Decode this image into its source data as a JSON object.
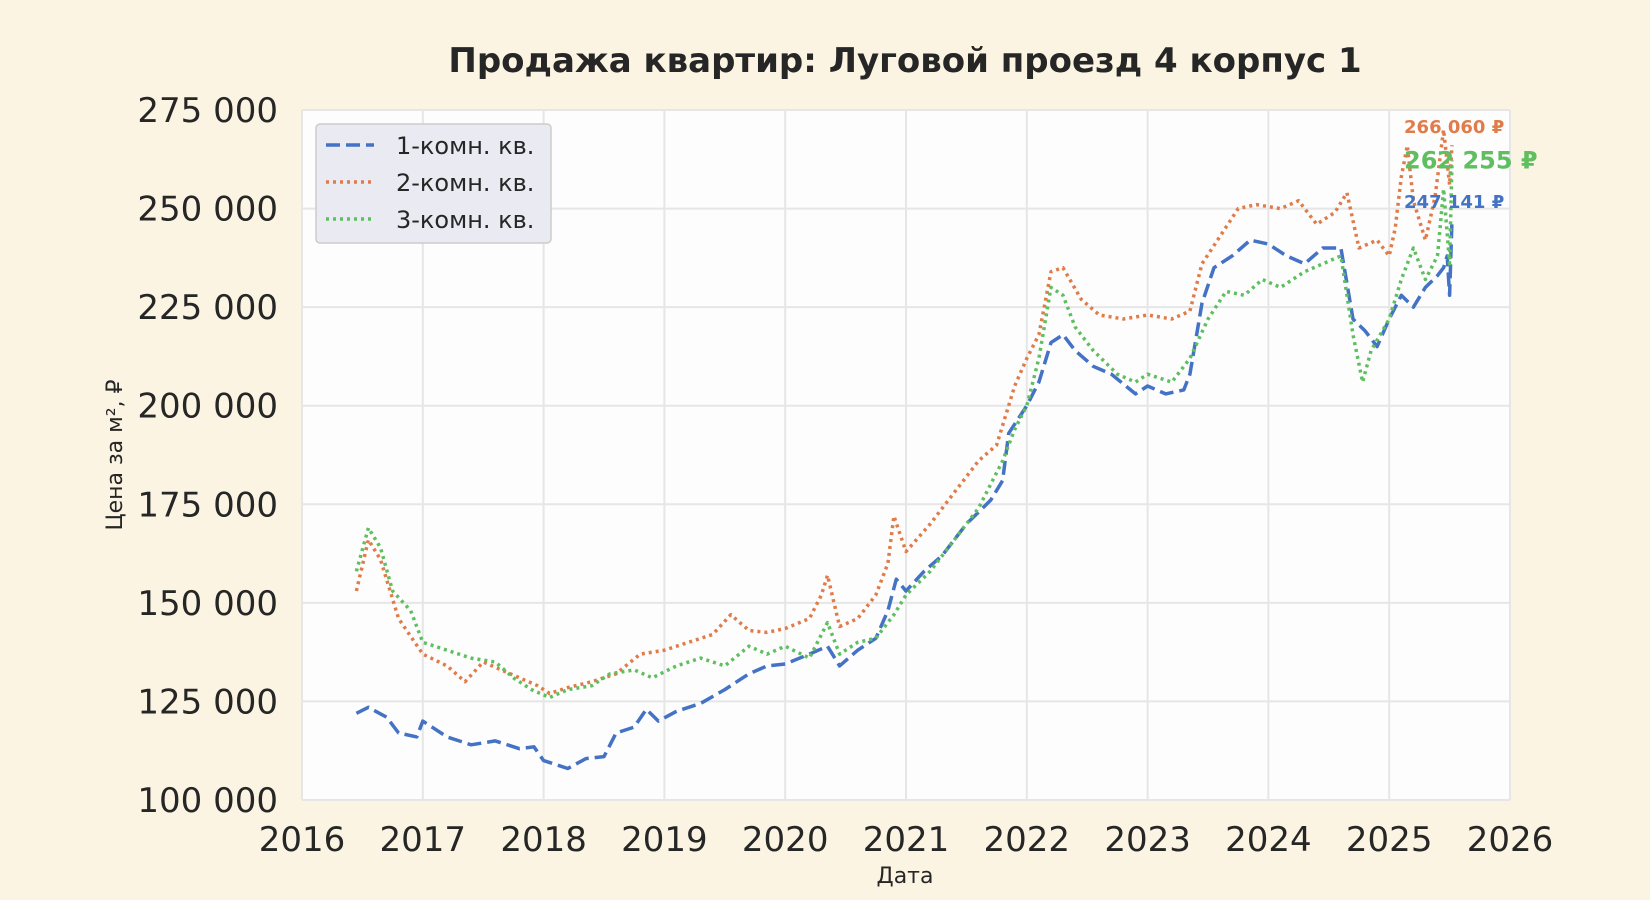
{
  "chart_data": {
    "type": "line",
    "title": "Продажа квартир: Луговой проезд 4 корпус 1",
    "xlabel": "Дата",
    "ylabel": "Цена за м², ₽",
    "xlim": [
      2016.0,
      2026.0
    ],
    "ylim": [
      100000,
      275000
    ],
    "x_ticks": [
      2016,
      2017,
      2018,
      2019,
      2020,
      2021,
      2022,
      2023,
      2024,
      2025,
      2026
    ],
    "x_tick_labels": [
      "2016",
      "2017",
      "2018",
      "2019",
      "2020",
      "2021",
      "2022",
      "2023",
      "2024",
      "2025",
      "2026"
    ],
    "y_ticks": [
      100000,
      125000,
      150000,
      175000,
      200000,
      225000,
      250000,
      275000
    ],
    "y_tick_labels": [
      "100 000",
      "125 000",
      "150 000",
      "175 000",
      "200 000",
      "225 000",
      "250 000",
      "275 000"
    ],
    "grid": true,
    "legend_position": "top-left",
    "series": [
      {
        "name": "1-комн. кв.",
        "color": "#4472c4",
        "dash": "dashed",
        "end_label": "247 141 ₽",
        "points": [
          [
            2016.45,
            122000
          ],
          [
            2016.55,
            123500
          ],
          [
            2016.7,
            121000
          ],
          [
            2016.8,
            117000
          ],
          [
            2016.95,
            116000
          ],
          [
            2017.0,
            120000
          ],
          [
            2017.2,
            116000
          ],
          [
            2017.4,
            114000
          ],
          [
            2017.6,
            115000
          ],
          [
            2017.8,
            113000
          ],
          [
            2017.92,
            113500
          ],
          [
            2018.0,
            110000
          ],
          [
            2018.1,
            109000
          ],
          [
            2018.2,
            108000
          ],
          [
            2018.35,
            110500
          ],
          [
            2018.5,
            111000
          ],
          [
            2018.6,
            117000
          ],
          [
            2018.75,
            118500
          ],
          [
            2018.85,
            123000
          ],
          [
            2018.95,
            120000
          ],
          [
            2019.1,
            122500
          ],
          [
            2019.3,
            124500
          ],
          [
            2019.5,
            128000
          ],
          [
            2019.7,
            132000
          ],
          [
            2019.85,
            134000
          ],
          [
            2020.0,
            134500
          ],
          [
            2020.2,
            137000
          ],
          [
            2020.35,
            139000
          ],
          [
            2020.45,
            134000
          ],
          [
            2020.6,
            138000
          ],
          [
            2020.75,
            141000
          ],
          [
            2020.85,
            148000
          ],
          [
            2020.92,
            156000
          ],
          [
            2021.0,
            153000
          ],
          [
            2021.15,
            158000
          ],
          [
            2021.3,
            162000
          ],
          [
            2021.5,
            170000
          ],
          [
            2021.7,
            176000
          ],
          [
            2021.8,
            181000
          ],
          [
            2021.85,
            193000
          ],
          [
            2022.0,
            200000
          ],
          [
            2022.1,
            206000
          ],
          [
            2022.2,
            216000
          ],
          [
            2022.3,
            218000
          ],
          [
            2022.4,
            214000
          ],
          [
            2022.55,
            210000
          ],
          [
            2022.7,
            208000
          ],
          [
            2022.9,
            203000
          ],
          [
            2023.0,
            205000
          ],
          [
            2023.15,
            203000
          ],
          [
            2023.3,
            204000
          ],
          [
            2023.35,
            208000
          ],
          [
            2023.45,
            226000
          ],
          [
            2023.55,
            235000
          ],
          [
            2023.7,
            238000
          ],
          [
            2023.85,
            242000
          ],
          [
            2024.0,
            241000
          ],
          [
            2024.15,
            238000
          ],
          [
            2024.3,
            236000
          ],
          [
            2024.45,
            240000
          ],
          [
            2024.6,
            240000
          ],
          [
            2024.7,
            222000
          ],
          [
            2024.8,
            219000
          ],
          [
            2024.9,
            215000
          ],
          [
            2025.0,
            222000
          ],
          [
            2025.1,
            228000
          ],
          [
            2025.2,
            225000
          ],
          [
            2025.3,
            230000
          ],
          [
            2025.4,
            233000
          ],
          [
            2025.45,
            235000
          ],
          [
            2025.48,
            238000
          ],
          [
            2025.5,
            228000
          ],
          [
            2025.52,
            247141
          ]
        ]
      },
      {
        "name": "2-комн. кв.",
        "color": "#e07b4a",
        "dash": "dotted",
        "end_label": "266 060 ₽",
        "points": [
          [
            2016.45,
            153000
          ],
          [
            2016.55,
            166000
          ],
          [
            2016.65,
            161000
          ],
          [
            2016.8,
            146000
          ],
          [
            2017.0,
            137000
          ],
          [
            2017.2,
            134000
          ],
          [
            2017.35,
            130000
          ],
          [
            2017.5,
            135000
          ],
          [
            2017.65,
            133000
          ],
          [
            2017.8,
            131000
          ],
          [
            2017.95,
            129000
          ],
          [
            2018.05,
            127000
          ],
          [
            2018.2,
            128500
          ],
          [
            2018.4,
            130000
          ],
          [
            2018.6,
            132000
          ],
          [
            2018.8,
            137000
          ],
          [
            2019.0,
            138000
          ],
          [
            2019.2,
            140000
          ],
          [
            2019.4,
            142000
          ],
          [
            2019.55,
            147000
          ],
          [
            2019.7,
            143000
          ],
          [
            2019.85,
            142500
          ],
          [
            2020.0,
            143500
          ],
          [
            2020.2,
            146000
          ],
          [
            2020.3,
            152000
          ],
          [
            2020.35,
            157000
          ],
          [
            2020.45,
            144000
          ],
          [
            2020.6,
            146000
          ],
          [
            2020.75,
            152000
          ],
          [
            2020.85,
            160000
          ],
          [
            2020.9,
            172000
          ],
          [
            2021.0,
            163000
          ],
          [
            2021.2,
            170000
          ],
          [
            2021.4,
            178000
          ],
          [
            2021.6,
            186000
          ],
          [
            2021.75,
            190000
          ],
          [
            2021.9,
            205000
          ],
          [
            2022.0,
            212000
          ],
          [
            2022.1,
            218000
          ],
          [
            2022.2,
            234000
          ],
          [
            2022.3,
            235000
          ],
          [
            2022.45,
            227000
          ],
          [
            2022.6,
            223000
          ],
          [
            2022.8,
            222000
          ],
          [
            2023.0,
            223000
          ],
          [
            2023.2,
            222000
          ],
          [
            2023.35,
            224000
          ],
          [
            2023.45,
            236000
          ],
          [
            2023.6,
            243000
          ],
          [
            2023.75,
            250000
          ],
          [
            2023.9,
            251000
          ],
          [
            2024.1,
            250000
          ],
          [
            2024.25,
            252000
          ],
          [
            2024.4,
            246000
          ],
          [
            2024.55,
            249000
          ],
          [
            2024.65,
            254000
          ],
          [
            2024.75,
            240000
          ],
          [
            2024.9,
            242000
          ],
          [
            2025.0,
            238000
          ],
          [
            2025.05,
            245000
          ],
          [
            2025.1,
            258000
          ],
          [
            2025.15,
            266000
          ],
          [
            2025.2,
            252000
          ],
          [
            2025.3,
            242000
          ],
          [
            2025.38,
            253000
          ],
          [
            2025.45,
            270000
          ],
          [
            2025.5,
            256000
          ],
          [
            2025.52,
            266060
          ]
        ]
      },
      {
        "name": "3-комн. кв.",
        "color": "#5fbf5f",
        "dash": "dotted",
        "end_label": "262 255 ₽",
        "points": [
          [
            2016.45,
            158000
          ],
          [
            2016.55,
            169000
          ],
          [
            2016.65,
            164000
          ],
          [
            2016.75,
            153000
          ],
          [
            2016.9,
            148000
          ],
          [
            2017.0,
            140000
          ],
          [
            2017.2,
            138000
          ],
          [
            2017.4,
            136000
          ],
          [
            2017.6,
            135000
          ],
          [
            2017.75,
            131000
          ],
          [
            2017.9,
            128000
          ],
          [
            2018.05,
            126000
          ],
          [
            2018.2,
            128000
          ],
          [
            2018.4,
            129000
          ],
          [
            2018.55,
            132000
          ],
          [
            2018.75,
            133000
          ],
          [
            2018.9,
            131000
          ],
          [
            2019.1,
            134000
          ],
          [
            2019.3,
            136000
          ],
          [
            2019.5,
            134000
          ],
          [
            2019.7,
            139000
          ],
          [
            2019.85,
            137000
          ],
          [
            2020.0,
            139000
          ],
          [
            2020.2,
            136000
          ],
          [
            2020.35,
            145000
          ],
          [
            2020.45,
            137000
          ],
          [
            2020.6,
            140000
          ],
          [
            2020.75,
            141000
          ],
          [
            2020.9,
            147000
          ],
          [
            2021.0,
            152000
          ],
          [
            2021.2,
            158000
          ],
          [
            2021.4,
            166000
          ],
          [
            2021.6,
            174000
          ],
          [
            2021.8,
            186000
          ],
          [
            2021.9,
            194000
          ],
          [
            2022.0,
            200000
          ],
          [
            2022.1,
            212000
          ],
          [
            2022.2,
            230000
          ],
          [
            2022.3,
            228000
          ],
          [
            2022.4,
            220000
          ],
          [
            2022.55,
            214000
          ],
          [
            2022.75,
            208000
          ],
          [
            2022.9,
            206000
          ],
          [
            2023.0,
            208000
          ],
          [
            2023.2,
            206000
          ],
          [
            2023.35,
            212000
          ],
          [
            2023.5,
            222000
          ],
          [
            2023.65,
            229000
          ],
          [
            2023.8,
            228000
          ],
          [
            2023.95,
            232000
          ],
          [
            2024.1,
            230000
          ],
          [
            2024.3,
            234000
          ],
          [
            2024.45,
            236000
          ],
          [
            2024.6,
            238000
          ],
          [
            2024.7,
            218000
          ],
          [
            2024.78,
            206000
          ],
          [
            2024.85,
            214000
          ],
          [
            2025.0,
            222000
          ],
          [
            2025.1,
            232000
          ],
          [
            2025.2,
            240000
          ],
          [
            2025.3,
            232000
          ],
          [
            2025.4,
            238000
          ],
          [
            2025.45,
            255000
          ],
          [
            2025.5,
            236000
          ],
          [
            2025.52,
            262255
          ]
        ]
      }
    ]
  }
}
